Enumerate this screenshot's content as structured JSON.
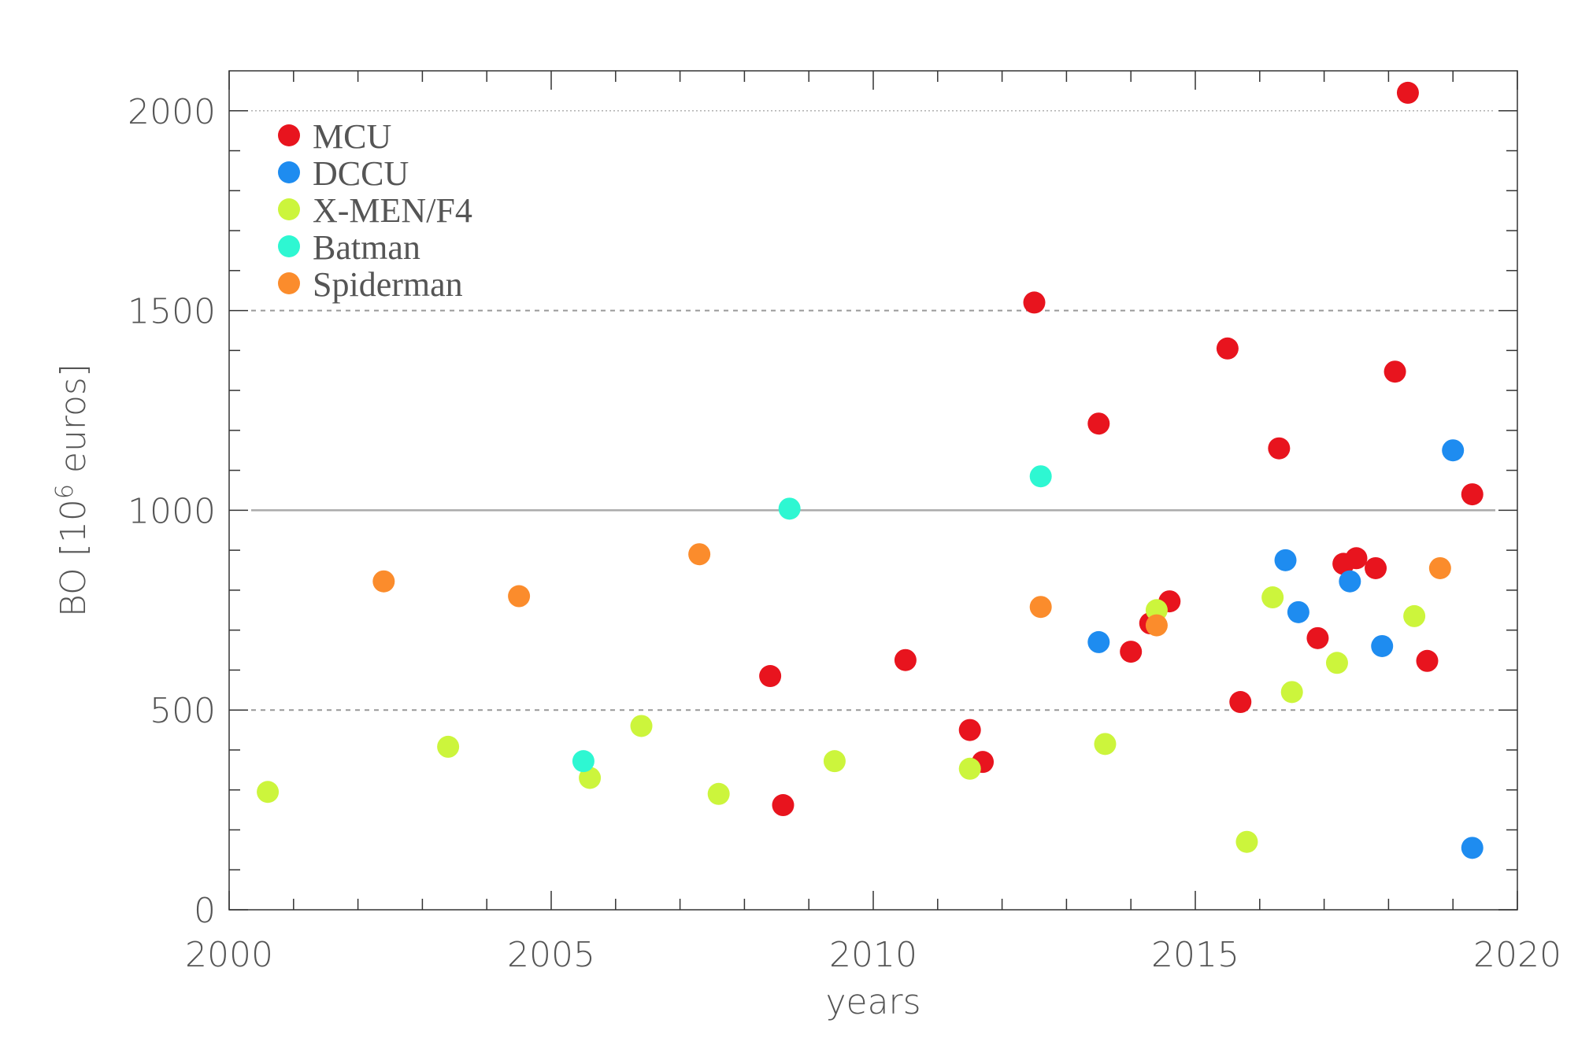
{
  "chart_data": {
    "type": "scatter",
    "title": "",
    "xlabel": "years",
    "ylabel": "BO [10^6 euros]",
    "ylabel_parts": {
      "prefix": "BO [10",
      "exponent": "6",
      "suffix": " euros]"
    },
    "xlim": [
      2000,
      2020
    ],
    "ylim": [
      0,
      2100
    ],
    "x_ticks": [
      2000,
      2005,
      2010,
      2015,
      2020
    ],
    "x_tick_labels": [
      "2000",
      "2005",
      "2010",
      "2015",
      "2020"
    ],
    "y_ticks": [
      0,
      500,
      1000,
      1500,
      2000
    ],
    "y_tick_labels": [
      "0",
      "500",
      "1000",
      "1500",
      "2000"
    ],
    "reference_lines": [
      {
        "y": 500,
        "style": "dashed"
      },
      {
        "y": 1000,
        "style": "solid"
      },
      {
        "y": 1500,
        "style": "dashed"
      },
      {
        "y": 2000,
        "style": "dotted"
      }
    ],
    "grid": false,
    "legend_position": "top-left",
    "series": [
      {
        "name": "MCU",
        "color": "#e8141e",
        "points": [
          [
            2008.4,
            585
          ],
          [
            2008.6,
            262
          ],
          [
            2010.5,
            625
          ],
          [
            2011.5,
            450
          ],
          [
            2011.7,
            370
          ],
          [
            2012.5,
            1520
          ],
          [
            2013.5,
            1217
          ],
          [
            2014.0,
            646
          ],
          [
            2014.3,
            717
          ],
          [
            2014.6,
            772
          ],
          [
            2015.5,
            1405
          ],
          [
            2015.7,
            520
          ],
          [
            2016.3,
            1155
          ],
          [
            2016.9,
            680
          ],
          [
            2017.3,
            866
          ],
          [
            2017.5,
            880
          ],
          [
            2017.8,
            855
          ],
          [
            2018.1,
            1347
          ],
          [
            2018.3,
            2045
          ],
          [
            2018.6,
            623
          ],
          [
            2019.3,
            1040
          ]
        ]
      },
      {
        "name": "DCCU",
        "color": "#1e8cf0",
        "points": [
          [
            2013.5,
            670
          ],
          [
            2016.4,
            875
          ],
          [
            2016.6,
            745
          ],
          [
            2017.4,
            822
          ],
          [
            2017.9,
            660
          ],
          [
            2019.0,
            1150
          ],
          [
            2019.3,
            155
          ]
        ]
      },
      {
        "name": "X-MEN/F4",
        "color": "#ccf53c",
        "points": [
          [
            2000.6,
            295
          ],
          [
            2003.4,
            408
          ],
          [
            2005.6,
            330
          ],
          [
            2006.4,
            460
          ],
          [
            2007.6,
            290
          ],
          [
            2009.4,
            372
          ],
          [
            2011.5,
            353
          ],
          [
            2013.6,
            415
          ],
          [
            2014.4,
            750
          ],
          [
            2015.8,
            170
          ],
          [
            2016.2,
            782
          ],
          [
            2016.5,
            545
          ],
          [
            2017.2,
            618
          ],
          [
            2018.4,
            735
          ]
        ]
      },
      {
        "name": "Batman",
        "color": "#2ef7d2",
        "points": [
          [
            2005.5,
            372
          ],
          [
            2008.7,
            1004
          ],
          [
            2012.6,
            1085
          ]
        ]
      },
      {
        "name": "Spiderman",
        "color": "#fb8c2c",
        "points": [
          [
            2002.4,
            822
          ],
          [
            2004.5,
            785
          ],
          [
            2007.3,
            890
          ],
          [
            2012.6,
            758
          ],
          [
            2014.4,
            712
          ],
          [
            2018.8,
            855
          ]
        ]
      }
    ]
  }
}
